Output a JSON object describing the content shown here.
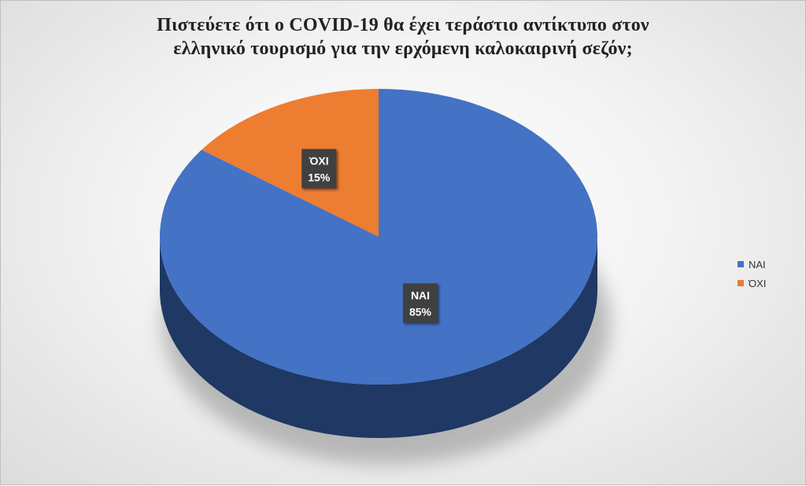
{
  "chart_data": {
    "type": "pie",
    "title_lines": [
      "Πιστεύετε ότι ο COVID-19 θα έχει τεράστιο αντίκτυπο στον",
      "ελληνικό τουρισμό για την ερχόμενη καλοκαιρινή σεζόν;"
    ],
    "slices": [
      {
        "label": "ΝΑΙ",
        "value": 85,
        "value_label": "85%",
        "color": "#4472C4",
        "side_color": "#1F3864"
      },
      {
        "label": "ΌΧΙ",
        "value": 15,
        "value_label": "15%",
        "color": "#ED7D31",
        "side_color": "#843C0C"
      }
    ],
    "legend": {
      "position": "right",
      "items": [
        "ΝΑΙ",
        "ΌΧΙ"
      ]
    },
    "style": "3d"
  }
}
